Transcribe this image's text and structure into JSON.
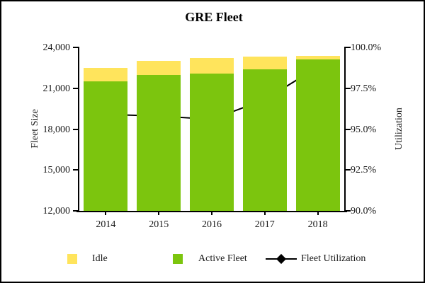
{
  "title": "GRE Fleet",
  "colors": {
    "idle": "#FFE45C",
    "active": "#7CC50E",
    "line": "#000000"
  },
  "left_axis": {
    "title": "Fleet Size",
    "tick_labels": [
      "24,000",
      "21,000",
      "18,000",
      "15,000",
      "12,000"
    ],
    "min": 12000,
    "max": 24000
  },
  "right_axis": {
    "title": "Utilization",
    "tick_labels": [
      "100.0%",
      "97.5%",
      "95.0%",
      "92.5%",
      "90.0%"
    ],
    "min": 90,
    "max": 100
  },
  "legend": {
    "idle": "Idle",
    "active": "Active Fleet",
    "utilization": "Fleet Utilization"
  },
  "chart_data": {
    "type": "bar",
    "subtype": "stacked-bar-with-line",
    "title": "GRE Fleet",
    "categories": [
      "2014",
      "2015",
      "2016",
      "2017",
      "2018"
    ],
    "series": [
      {
        "name": "Active Fleet",
        "type": "bar",
        "stack": "fleet",
        "color": "#7CC50E",
        "values": [
          21500,
          22000,
          22100,
          22400,
          23100
        ]
      },
      {
        "name": "Idle",
        "type": "bar",
        "stack": "fleet",
        "color": "#FFE45C",
        "values": [
          1000,
          1000,
          1100,
          900,
          300
        ]
      },
      {
        "name": "Fleet Utilization",
        "type": "line",
        "axis": "right",
        "color": "#000000",
        "marker": "diamond",
        "values": [
          95.9,
          95.8,
          95.6,
          96.8,
          98.8
        ]
      }
    ],
    "xlabel": "",
    "ylabel": "Fleet Size",
    "y2label": "Utilization",
    "ylim": [
      12000,
      24000
    ],
    "y2lim": [
      90,
      100
    ],
    "grid": false,
    "legend_position": "bottom"
  }
}
